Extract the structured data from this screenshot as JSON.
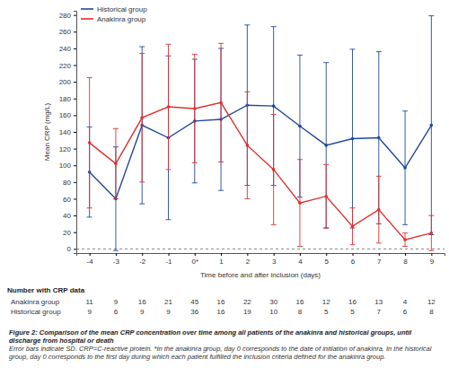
{
  "chart_data": {
    "type": "line",
    "title": "Figure 2: Comparison of the mean CRP concentration over time among all patients of the anakinra and historical groups, until discharge from hospital or death",
    "caption": "Error bars indicate SD. CRP=C-reactive protein. *In the anakinra group, day 0 corresponds to the date of initiation of anakinra. In the historical group, day 0 corresponds to the first day during which each patient fulfilled the inclusion criteria defined for the anakinra group.",
    "x_label": "Time before and after inclusion (days)",
    "y_label": "Mean CRP (mg/L)",
    "x": [
      -4,
      -3,
      -2,
      -1,
      0,
      1,
      2,
      3,
      4,
      5,
      6,
      7,
      8,
      9
    ],
    "xlim": [
      -4.5,
      9.5
    ],
    "xticks": [
      -4,
      -3,
      -2,
      -1,
      {
        "value": 0,
        "label": "0*"
      },
      1,
      2,
      3,
      4,
      5,
      6,
      7,
      8,
      9
    ],
    "ylim": [
      -5,
      285
    ],
    "yticks": [
      0,
      20,
      40,
      60,
      80,
      100,
      120,
      140,
      160,
      180,
      200,
      220,
      240,
      260,
      280
    ],
    "legend": "top-left",
    "series": [
      {
        "name": "Historical group",
        "color": "#1f4a9a",
        "marker": "circle",
        "line_style": "solid",
        "values": [
          92,
          60,
          148,
          133,
          153,
          155,
          172,
          171,
          147,
          124,
          132,
          133,
          97,
          148
        ],
        "errors": [
          54,
          62,
          94,
          98,
          74,
          85,
          96,
          95,
          85,
          99,
          107,
          103,
          68,
          131
        ]
      },
      {
        "name": "Anakinra group",
        "color": "#e0302e",
        "marker": "circle",
        "line_style": "solid",
        "values": [
          127,
          102,
          157,
          170,
          168,
          175,
          124,
          95,
          55,
          63,
          27,
          47,
          11,
          19
        ],
        "errors": [
          78,
          42,
          77,
          75,
          65,
          71,
          64,
          66,
          52,
          38,
          22,
          40,
          8,
          21
        ]
      }
    ],
    "table": {
      "title": "Number with CRP data",
      "rows": [
        {
          "name": "Anakinra group",
          "values": [
            11,
            9,
            16,
            21,
            45,
            16,
            22,
            30,
            16,
            12,
            16,
            13,
            4,
            12
          ]
        },
        {
          "name": "Historical group",
          "values": [
            9,
            6,
            9,
            9,
            36,
            16,
            19,
            10,
            8,
            5,
            5,
            7,
            6,
            8
          ]
        }
      ]
    }
  }
}
